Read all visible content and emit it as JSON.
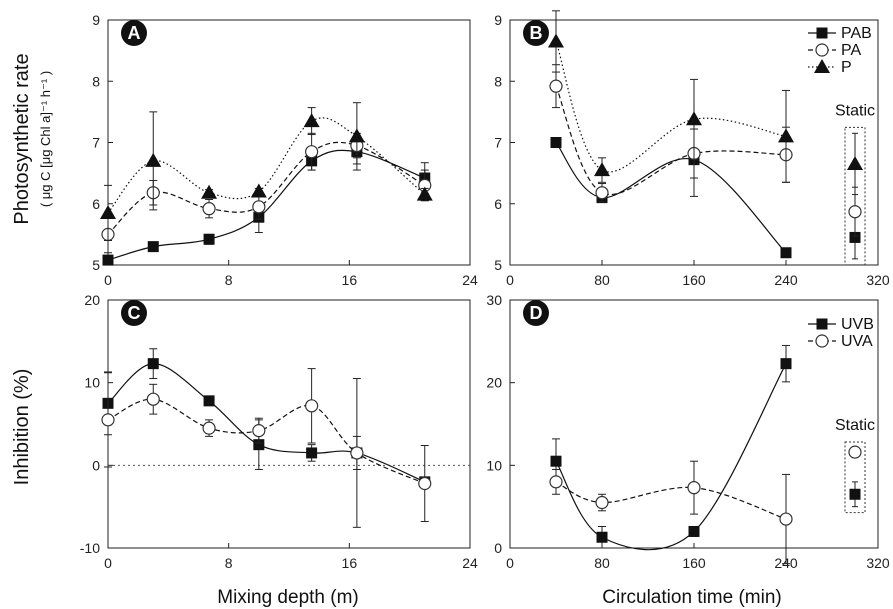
{
  "figure": {
    "x_title_left": "Mixing depth (m)",
    "x_title_right": "Circulation time (min)",
    "y_title_top_main": "Photosynthetic rate",
    "y_title_top_units": "( μg C [μg Chl a]⁻¹ h⁻¹ )",
    "y_title_bottom": "Inhibition (%)",
    "static_label": "Static"
  },
  "chart_data": [
    {
      "panel": "A",
      "type": "scatter",
      "xlim": [
        0,
        24
      ],
      "ylim": [
        5,
        9
      ],
      "xticks": [
        "0",
        "8",
        "16",
        "24"
      ],
      "yticks": [
        "5",
        "6",
        "7",
        "8",
        "9"
      ],
      "series": [
        {
          "name": "PAB",
          "marker": "square",
          "line": "solid",
          "x": [
            0,
            3,
            6.7,
            10,
            13.5,
            16.5,
            21
          ],
          "y": [
            5.08,
            5.3,
            5.42,
            5.78,
            6.7,
            6.85,
            6.42
          ],
          "err": [
            0.05,
            0.04,
            0.08,
            0.25,
            0.15,
            0.2,
            0.25
          ]
        },
        {
          "name": "PA",
          "marker": "circle",
          "line": "dashed",
          "x": [
            0,
            3,
            6.7,
            10,
            13.5,
            16.5,
            21
          ],
          "y": [
            5.5,
            6.18,
            5.92,
            5.95,
            6.85,
            6.95,
            6.3
          ],
          "err": [
            0.3,
            0.2,
            0.15,
            0.2,
            0.3,
            0.2,
            0.25
          ]
        },
        {
          "name": "P",
          "marker": "triangle",
          "line": "dotted",
          "x": [
            0,
            3,
            6.7,
            10,
            13.5,
            16.5,
            21
          ],
          "y": [
            5.85,
            6.7,
            6.18,
            6.2,
            7.35,
            7.1,
            6.15
          ],
          "err": [
            0.45,
            0.8,
            0.05,
            0.05,
            0.22,
            0.55,
            0.1
          ]
        }
      ]
    },
    {
      "panel": "B",
      "type": "scatter",
      "xlim": [
        0,
        320
      ],
      "ylim": [
        5,
        9
      ],
      "xticks": [
        "0",
        "80",
        "160",
        "240",
        "320"
      ],
      "yticks": [
        "5",
        "6",
        "7",
        "8",
        "9"
      ],
      "series": [
        {
          "name": "PAB",
          "marker": "square",
          "line": "solid",
          "x": [
            40,
            80,
            160,
            240
          ],
          "y": [
            7.0,
            6.1,
            6.72,
            5.2
          ],
          "err": [
            0.02,
            0.05,
            0.6,
            0.03
          ]
        },
        {
          "name": "PA",
          "marker": "circle",
          "line": "dashed",
          "x": [
            40,
            80,
            160,
            240
          ],
          "y": [
            7.92,
            6.18,
            6.82,
            6.8
          ],
          "err": [
            0.35,
            0.15,
            0.4,
            0.45
          ]
        },
        {
          "name": "P",
          "marker": "triangle",
          "line": "dotted",
          "x": [
            40,
            80,
            160,
            240
          ],
          "y": [
            8.65,
            6.55,
            7.38,
            7.1
          ],
          "err": [
            0.5,
            0.2,
            0.65,
            0.75
          ]
        }
      ],
      "static": {
        "PAB": 5.45,
        "PA": 5.87,
        "P": 6.65,
        "err": {
          "PAB": 0.35,
          "PA": 0.4,
          "P": 0.5
        }
      }
    },
    {
      "panel": "C",
      "type": "scatter",
      "xlim": [
        0,
        24
      ],
      "ylim": [
        -10,
        20
      ],
      "xticks": [
        "0",
        "8",
        "16",
        "24"
      ],
      "yticks": [
        "-10",
        "0",
        "10",
        "20"
      ],
      "series": [
        {
          "name": "UVB",
          "marker": "square",
          "line": "solid",
          "x": [
            0,
            3,
            6.7,
            10,
            13.5,
            16.5,
            21
          ],
          "y": [
            7.5,
            12.3,
            7.8,
            2.5,
            1.5,
            1.5,
            -2
          ],
          "err": [
            3.8,
            1.8,
            0.5,
            3.0,
            1.0,
            2.0,
            0.5
          ]
        },
        {
          "name": "UVA",
          "marker": "circle",
          "line": "dashed",
          "x": [
            0,
            3,
            6.7,
            10,
            13.5,
            16.5,
            21
          ],
          "y": [
            5.5,
            8.0,
            4.5,
            4.2,
            7.2,
            1.5,
            -2.2
          ],
          "err": [
            5.7,
            1.8,
            1.0,
            1.5,
            4.5,
            9.0,
            4.6
          ]
        }
      ]
    },
    {
      "panel": "D",
      "type": "scatter",
      "xlim": [
        0,
        320
      ],
      "ylim": [
        0,
        30
      ],
      "xticks": [
        "0",
        "80",
        "160",
        "240",
        "320"
      ],
      "yticks": [
        "0",
        "10",
        "20",
        "30"
      ],
      "series": [
        {
          "name": "UVB",
          "marker": "square",
          "line": "solid",
          "x": [
            40,
            80,
            160,
            240
          ],
          "y": [
            10.5,
            1.3,
            2.0,
            22.3
          ],
          "err": [
            2.7,
            1.3,
            0.3,
            2.2
          ]
        },
        {
          "name": "UVA",
          "marker": "circle",
          "line": "dashed",
          "x": [
            40,
            80,
            160,
            240
          ],
          "y": [
            8.0,
            5.5,
            7.3,
            3.5
          ],
          "err": [
            1.5,
            1.0,
            3.2,
            5.4
          ]
        }
      ],
      "static": {
        "UVB": 6.5,
        "UVA": 11.6,
        "err": {
          "UVB": 1.5,
          "UVA": 0.5
        }
      }
    }
  ],
  "legends": {
    "top": [
      "PAB",
      "PA",
      "P"
    ],
    "bottom": [
      "UVB",
      "UVA"
    ]
  }
}
